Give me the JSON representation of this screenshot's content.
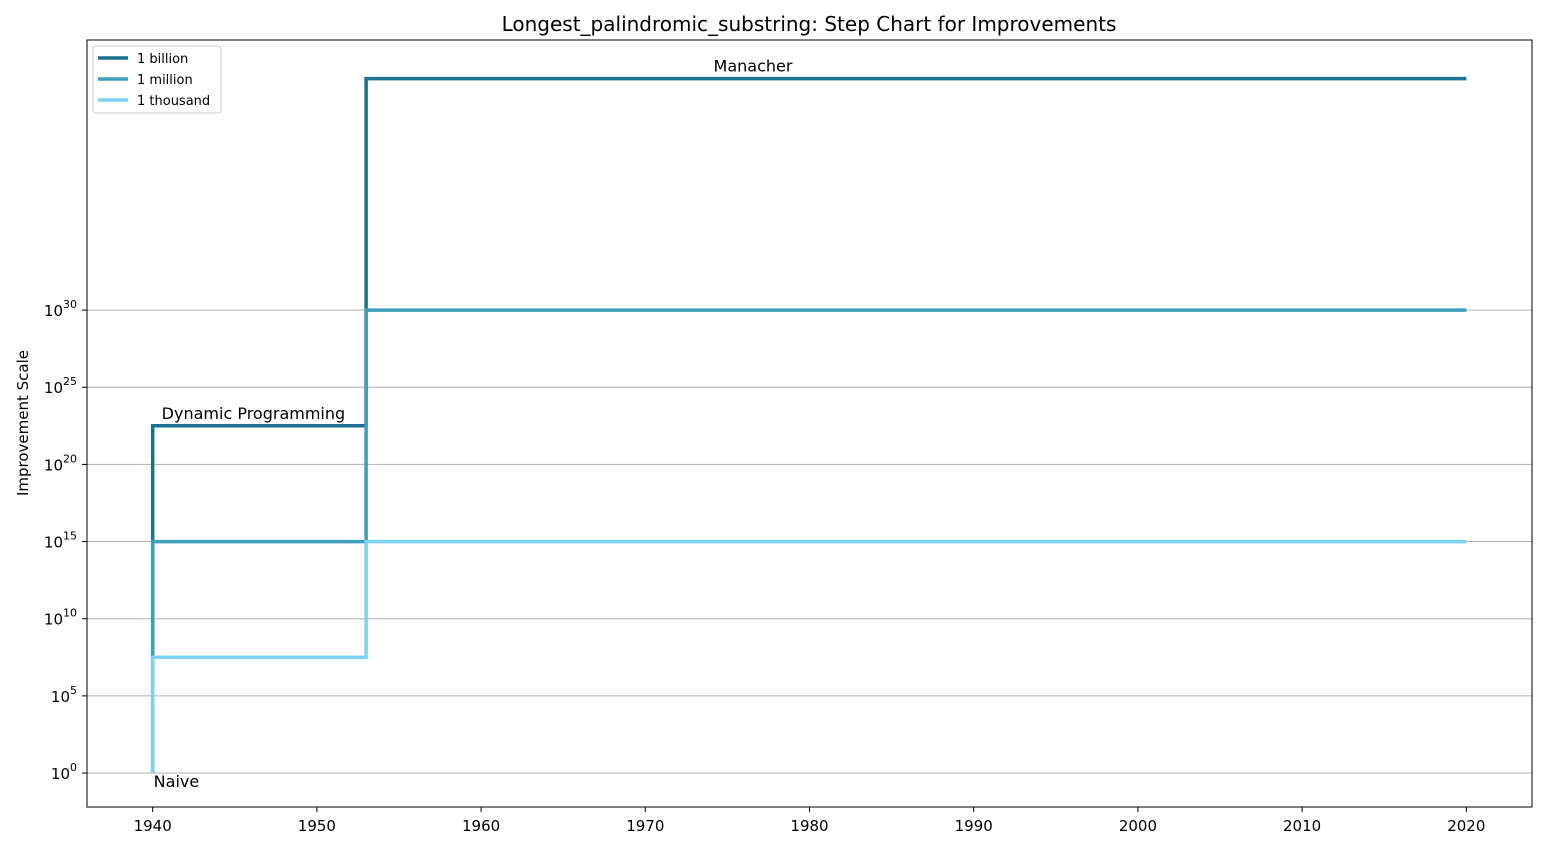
{
  "chart_data": {
    "type": "line",
    "step": true,
    "title": "Longest_palindromic_substring: Step Chart for Improvements",
    "xlabel": "",
    "ylabel": "Improvement Scale",
    "xlim": [
      1936,
      2024
    ],
    "ylim_exponent": [
      -2.2,
      47.5
    ],
    "y_scale": "log10",
    "x_ticks": [
      1940,
      1950,
      1960,
      1970,
      1980,
      1990,
      2000,
      2010,
      2020
    ],
    "y_ticks": [
      {
        "base": "10",
        "exp": "0",
        "value_exp": 0
      },
      {
        "base": "10",
        "exp": "5",
        "value_exp": 5
      },
      {
        "base": "10",
        "exp": "10",
        "value_exp": 10
      },
      {
        "base": "10",
        "exp": "15",
        "value_exp": 15
      },
      {
        "base": "10",
        "exp": "20",
        "value_exp": 20
      },
      {
        "base": "10",
        "exp": "25",
        "value_exp": 25
      },
      {
        "base": "10",
        "exp": "30",
        "value_exp": 30
      }
    ],
    "grid": "horizontal",
    "legend_position": "top-left",
    "series": [
      {
        "name": "1 billion",
        "color": "#1a7290",
        "x": [
          1940,
          1940,
          1953,
          1953,
          2020
        ],
        "y_exp": [
          0,
          22.5,
          22.5,
          45,
          45
        ]
      },
      {
        "name": "1 million",
        "color": "#3d9fbd",
        "x": [
          1940,
          1940,
          1953,
          1953,
          2020
        ],
        "y_exp": [
          0,
          15,
          15,
          30,
          30
        ]
      },
      {
        "name": "1 thousand",
        "color": "#7dd3f5",
        "x": [
          1940,
          1940,
          1953,
          1953,
          2020
        ],
        "y_exp": [
          0,
          7.5,
          7.5,
          15,
          15
        ]
      }
    ],
    "annotations": [
      {
        "text": "Naive",
        "x": 1940,
        "y_exp": 0
      },
      {
        "text": "Dynamic Programming",
        "x": 1940,
        "y_exp": 22.5
      },
      {
        "text": "Manacher",
        "x": 1953,
        "y_exp": 45
      }
    ]
  }
}
